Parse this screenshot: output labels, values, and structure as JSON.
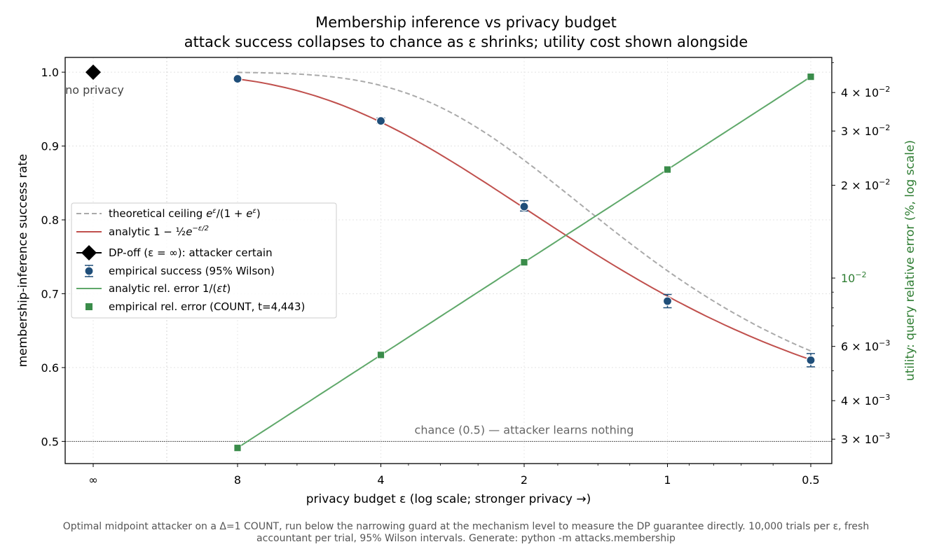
{
  "title": "Membership inference vs privacy budget",
  "subtitle": "attack success collapses to chance as ε shrinks; utility cost shown alongside",
  "caption_line1": "Optimal midpoint attacker on a Δ=1 COUNT, run below the narrowing guard at the mechanism level to measure the DP guarantee directly. 10,000 trials per ε, fresh",
  "caption_line2": "accountant per trial, 95% Wilson intervals. Generate: python -m attacks.membership",
  "chart_data": {
    "type": "line",
    "xlabel": "privacy budget  ε   (log scale; stronger privacy →)",
    "ylabel": "membership-inference success rate",
    "y2label": "utility: query relative error  (%, log scale)",
    "x_scale": "log, reversed",
    "x_ticks": [
      "∞",
      "8",
      "4",
      "2",
      "1",
      "0.5"
    ],
    "x_tick_values": [
      null,
      8,
      4,
      2,
      1,
      0.5
    ],
    "ylim": [
      0.47,
      1.02
    ],
    "y_ticks": [
      0.5,
      0.6,
      0.7,
      0.8,
      0.9,
      1.0
    ],
    "y_tick_labels": [
      "0.5",
      "0.6",
      "0.7",
      "0.8",
      "0.9",
      "1.0"
    ],
    "y2_scale": "log",
    "y2lim": [
      0.0025,
      0.052
    ],
    "y2_ticks": [
      0.003,
      0.004,
      0.006,
      0.01,
      0.02,
      0.03,
      0.04
    ],
    "y2_tick_labels": [
      {
        "mant": "3 × 10",
        "exp": "−3"
      },
      {
        "mant": "4 × 10",
        "exp": "−3"
      },
      {
        "mant": "6 × 10",
        "exp": "−3"
      },
      {
        "mant": "10",
        "exp": "−2"
      },
      {
        "mant": "2 × 10",
        "exp": "−2"
      },
      {
        "mant": "3 × 10",
        "exp": "−2"
      },
      {
        "mant": "4 × 10",
        "exp": "−2"
      }
    ],
    "grid": true,
    "legend_position": "center-left",
    "chance_level": 0.5,
    "chance_label": "chance (0.5) — attacker learns nothing",
    "dp_off": {
      "x": "∞",
      "y": 1.0,
      "label": "no privacy"
    },
    "series": [
      {
        "name": "theoretical ceiling",
        "math": "e^ε/(1+e^ε)",
        "kind": "dashed-line",
        "axis": "left",
        "color": "#aaaaaa"
      },
      {
        "name": "analytic",
        "math": "1 − ½ e^(−ε/2)",
        "kind": "line",
        "axis": "left",
        "color": "#c0504d"
      },
      {
        "name": "DP-off (ε = ∞): attacker certain",
        "kind": "diamond",
        "axis": "left",
        "color": "#000000"
      },
      {
        "name": "empirical success (95% Wilson)",
        "kind": "errorbar-points",
        "axis": "left",
        "color": "#1f4e79",
        "x": [
          8,
          4,
          2,
          1,
          0.5
        ],
        "y": [
          0.991,
          0.934,
          0.818,
          0.69,
          0.61
        ],
        "ci_low": [
          0.989,
          0.931,
          0.812,
          0.681,
          0.601
        ],
        "ci_high": [
          0.993,
          0.938,
          0.826,
          0.699,
          0.619
        ]
      },
      {
        "name": "analytic rel. error",
        "math": "1/(εt)",
        "kind": "line",
        "axis": "right",
        "color": "#5fa86a"
      },
      {
        "name": "empirical rel. error  (COUNT, t=4,443)",
        "kind": "square-points",
        "axis": "right",
        "color": "#3a8c4a",
        "x": [
          8,
          4,
          2,
          1,
          0.5
        ],
        "y": [
          0.00281,
          0.00563,
          0.01125,
          0.0225,
          0.045
        ]
      }
    ],
    "colors": {
      "accent_green": "#2e7d32",
      "success": "#1f4e79",
      "analytic": "#c0504d",
      "ceiling": "#aaaaaa"
    }
  }
}
